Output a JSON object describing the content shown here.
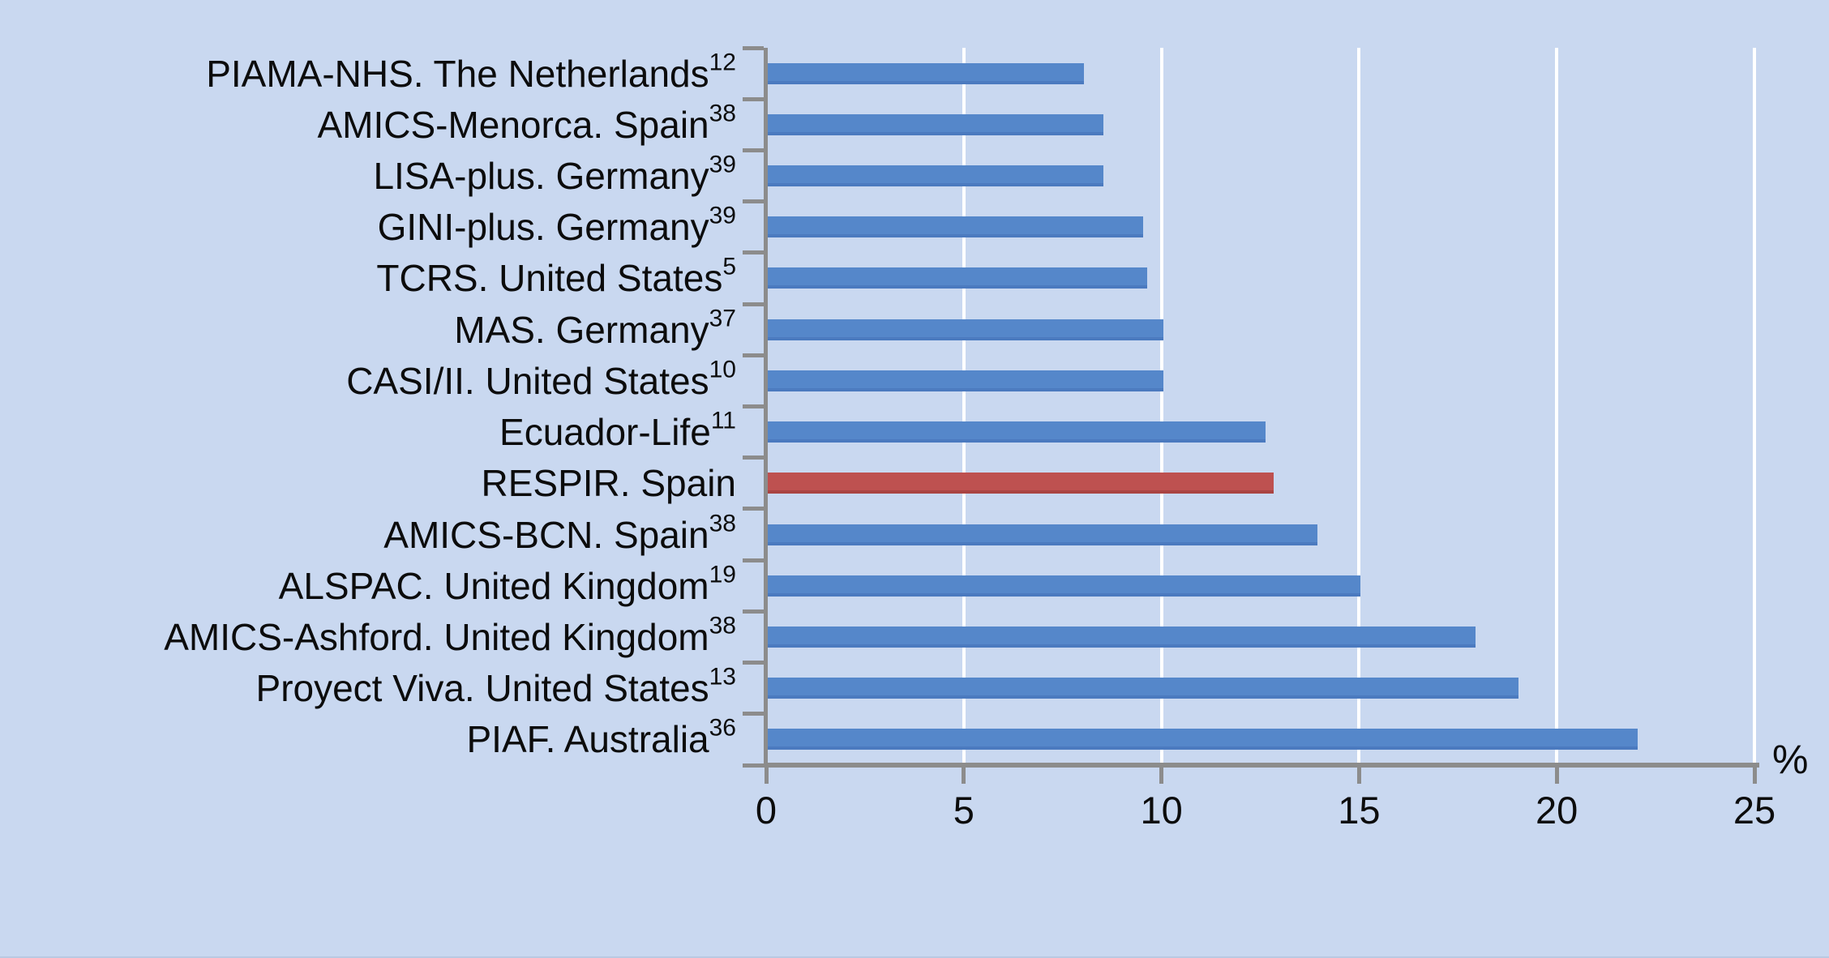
{
  "chart_data": {
    "type": "bar",
    "orientation": "horizontal",
    "title": "",
    "xlabel": "%",
    "ylabel": "",
    "xlim": [
      0,
      25
    ],
    "x_ticks": [
      0,
      5,
      10,
      15,
      20,
      25
    ],
    "grid": "vertical white gridlines at each x tick",
    "legend": "none",
    "categories": [
      {
        "label": "PIAMA-NHS. The Netherlands",
        "sup": "12"
      },
      {
        "label": "AMICS-Menorca. Spain",
        "sup": "38"
      },
      {
        "label": "LISA-plus. Germany",
        "sup": "39"
      },
      {
        "label": "GINI-plus. Germany",
        "sup": "39"
      },
      {
        "label": "TCRS. United States",
        "sup": "5"
      },
      {
        "label": "MAS. Germany",
        "sup": "37"
      },
      {
        "label": "CASI/II. United States",
        "sup": "10"
      },
      {
        "label": "Ecuador-Life",
        "sup": "11"
      },
      {
        "label": "RESPIR. Spain",
        "sup": ""
      },
      {
        "label": "AMICS-BCN. Spain",
        "sup": "38"
      },
      {
        "label": "ALSPAC. United Kingdom",
        "sup": "19"
      },
      {
        "label": "AMICS-Ashford. United Kingdom",
        "sup": "38"
      },
      {
        "label": "Proyect Viva. United States",
        "sup": "13"
      },
      {
        "label": "PIAF. Australia",
        "sup": "36"
      }
    ],
    "values": [
      8,
      8.5,
      8.5,
      9.5,
      9.6,
      10,
      10,
      12.6,
      12.8,
      13.9,
      15,
      17.9,
      19,
      22
    ],
    "highlight_index": 8,
    "colors": {
      "bar": "#5587ca",
      "bar_edge": "#4b7abf",
      "highlight_bar": "#be5150",
      "highlight_edge": "#a94443",
      "background": "#c9d8f0",
      "axis": "#8c8c8c",
      "gridline": "#ffffff",
      "text": "#0c0c0c"
    }
  }
}
